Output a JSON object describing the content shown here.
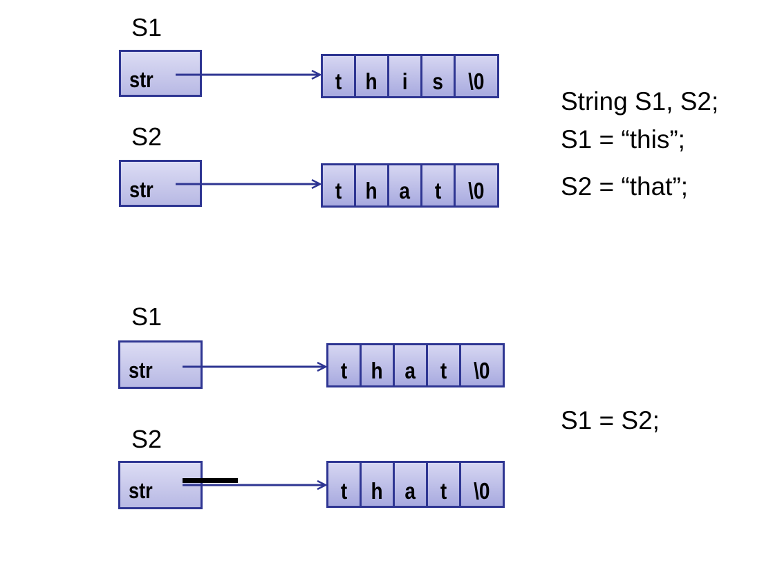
{
  "top": {
    "s1": {
      "label": "S1",
      "field": "str",
      "chars": [
        "t",
        "h",
        "i",
        "s",
        "\\0"
      ]
    },
    "s2": {
      "label": "S2",
      "field": "str",
      "chars": [
        "t",
        "h",
        "a",
        "t",
        "\\0"
      ]
    }
  },
  "bottom": {
    "s1": {
      "label": "S1",
      "field": "str",
      "chars": [
        "t",
        "h",
        "a",
        "t",
        "\\0"
      ]
    },
    "s2": {
      "label": "S2",
      "field": "str",
      "chars": [
        "t",
        "h",
        "a",
        "t",
        "\\0"
      ]
    }
  },
  "code": {
    "line1": "String S1, S2;",
    "line2": "S1 = “this”;",
    "line3": "S2 = “that”;",
    "line4": "S1 = S2;"
  },
  "colors": {
    "border": "#2e3592",
    "fill": "#b8b9e4"
  }
}
